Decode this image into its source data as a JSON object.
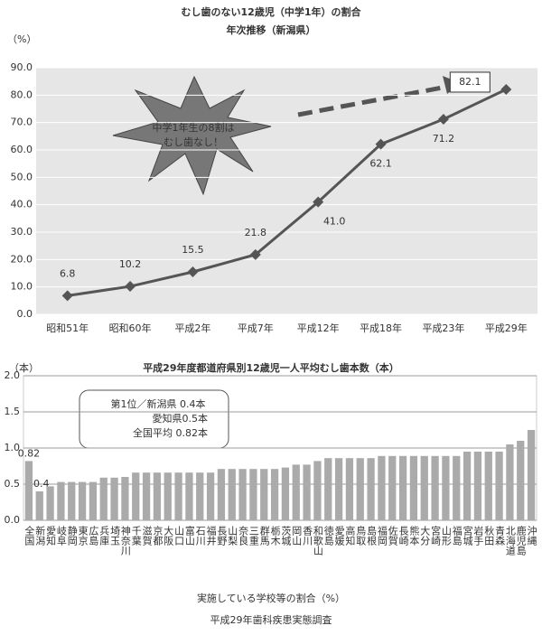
{
  "chart_data": [
    {
      "type": "line",
      "title": "むし歯のない12歳児（中学1年）の割合",
      "subtitle": "年次推移（新潟県）",
      "y_label": "（%）",
      "categories": [
        "昭和51年",
        "昭和60年",
        "平成2年",
        "平成7年",
        "平成12年",
        "平成18年",
        "平成23年",
        "平成29年"
      ],
      "values": [
        6.8,
        10.2,
        15.5,
        21.8,
        41.0,
        62.1,
        71.2,
        82.1
      ],
      "value_labels": [
        "6.8",
        "10.2",
        "15.5",
        "21.8",
        "41.0",
        "62.1",
        "71.2",
        "82.1"
      ],
      "color": "#555555",
      "ylim": [
        0,
        90
      ],
      "yticks": [
        {
          "value": 0,
          "label": "0.0"
        },
        {
          "value": 10,
          "label": "10.0"
        },
        {
          "value": 20,
          "label": "20.0"
        },
        {
          "value": 30,
          "label": "30.0"
        },
        {
          "value": 40,
          "label": "40.0"
        },
        {
          "value": 50,
          "label": "50.0"
        },
        {
          "value": 60,
          "label": "60.0"
        },
        {
          "value": 70,
          "label": "70.0"
        },
        {
          "value": 80,
          "label": "80.0"
        },
        {
          "value": 90,
          "label": "90.0"
        }
      ],
      "grid": true,
      "annotation": [
        "中学1年生の8割は",
        "むし歯なし！"
      ]
    },
    {
      "type": "bar",
      "title": "平成29年度都道府県別12歳児一人平均むし歯本数（本）",
      "y_label": "（本）",
      "categories": [
        "全国",
        "新潟",
        "愛知",
        "岐阜",
        "静岡",
        "東京",
        "広島",
        "兵庫",
        "埼玉",
        "神奈川",
        "千葉",
        "滋賀",
        "京都",
        "大阪",
        "山口",
        "富山",
        "石川",
        "福井",
        "長野",
        "山梨",
        "奈良",
        "三重",
        "群馬",
        "栃木",
        "茨城",
        "岡山",
        "香川",
        "和歌山",
        "徳島",
        "愛媛",
        "高知",
        "鳥取",
        "島根",
        "福岡",
        "佐賀",
        "長崎",
        "熊本",
        "大分",
        "宮崎",
        "山形",
        "福島",
        "宮城",
        "岩手",
        "秋田",
        "青森",
        "北海道",
        "鹿児島",
        "沖縄"
      ],
      "values": [
        0.82,
        0.4,
        0.47,
        0.53,
        0.53,
        0.53,
        0.53,
        0.59,
        0.59,
        0.6,
        0.66,
        0.66,
        0.66,
        0.66,
        0.66,
        0.66,
        0.66,
        0.66,
        0.71,
        0.71,
        0.71,
        0.71,
        0.71,
        0.71,
        0.73,
        0.77,
        0.77,
        0.82,
        0.86,
        0.86,
        0.86,
        0.86,
        0.86,
        0.89,
        0.89,
        0.89,
        0.89,
        0.89,
        0.89,
        0.89,
        0.89,
        0.95,
        0.95,
        0.95,
        0.95,
        1.05,
        1.1,
        1.25
      ],
      "value_labels": [
        "0.82",
        "0.4",
        null,
        null,
        null,
        null,
        null,
        null,
        null,
        null,
        null,
        null,
        null,
        null,
        null,
        null,
        null,
        null,
        null,
        null,
        null,
        null,
        null,
        null,
        null,
        null,
        null,
        null,
        null,
        null,
        null,
        null,
        null,
        null,
        null,
        null,
        null,
        null,
        null,
        null,
        null,
        null,
        null,
        null,
        null,
        null,
        null,
        null
      ],
      "color": "#aaaaaa",
      "ylim": [
        0,
        2.0
      ],
      "yticks": [
        {
          "value": 0,
          "label": "0.0"
        },
        {
          "value": 0.5,
          "label": "0.5"
        },
        {
          "value": 1.0,
          "label": "1.0"
        },
        {
          "value": 1.5,
          "label": "1.5"
        },
        {
          "value": 2.0,
          "label": "2.0"
        }
      ],
      "grid": true,
      "annotation": [
        "第1位／新潟県 0.4本",
        "愛知県0.5本",
        "全国平均 0.82本"
      ]
    }
  ],
  "footer": [
    "実施している学校等の割合（%）",
    "平成29年歯科疾患実態調査"
  ]
}
